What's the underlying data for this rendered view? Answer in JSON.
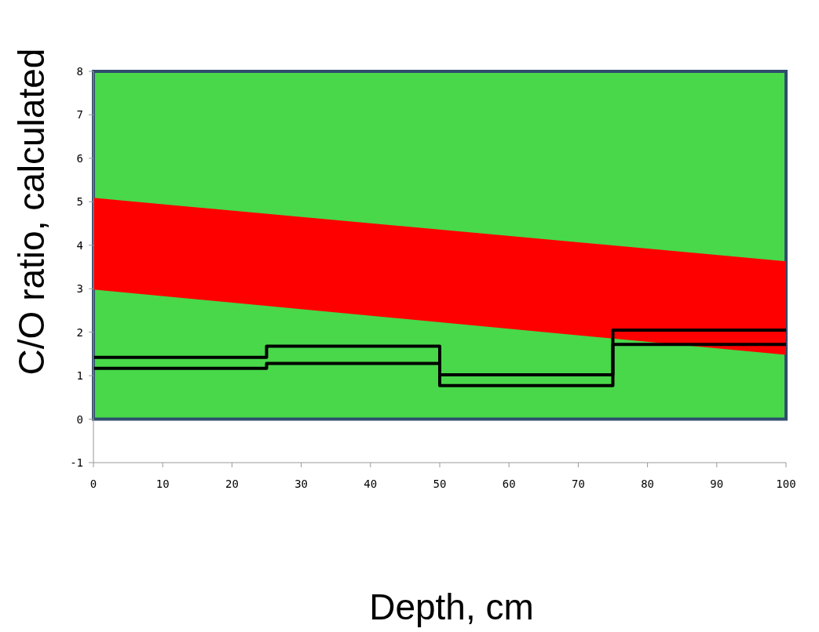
{
  "chart_data": {
    "type": "step",
    "xlabel": "Depth, cm",
    "ylabel": "C/O ratio, calculated",
    "xlim": [
      0,
      100
    ],
    "ylim": [
      -1,
      8
    ],
    "xticks": [
      0,
      10,
      20,
      30,
      40,
      50,
      60,
      70,
      80,
      90,
      100
    ],
    "yticks": [
      -1,
      0,
      1,
      2,
      3,
      4,
      5,
      6,
      7,
      8
    ],
    "grid": false,
    "series": [
      {
        "type": "area",
        "color": "#48d84a",
        "x": [
          0,
          100
        ],
        "values": [
          8,
          8
        ]
      },
      {
        "type": "area",
        "color": "#ff0000",
        "x": [
          0,
          100
        ],
        "values": [
          null,
          null
        ],
        "lower": [
          2.98,
          1.48
        ],
        "upper": [
          5.09,
          3.63
        ]
      },
      {
        "color": "#000000",
        "x": [
          0,
          25,
          50,
          75,
          100
        ],
        "values": [
          1.42,
          1.68,
          1.02,
          1.72,
          1.72
        ]
      },
      {
        "color": "#000000",
        "x": [
          0,
          25,
          50,
          75,
          100
        ],
        "values": [
          1.17,
          1.28,
          0.77,
          2.05,
          2.05
        ]
      }
    ]
  }
}
